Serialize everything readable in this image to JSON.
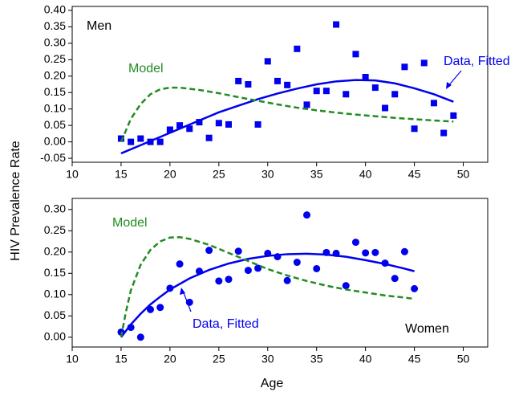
{
  "y_label": "HIV Prevalence Rate",
  "chart_data": [
    {
      "type": "scatter",
      "annotations": [
        "Men",
        "Model",
        "Data, Fitted"
      ],
      "xlim": [
        10,
        52.5
      ],
      "xticks": [
        10,
        15,
        20,
        25,
        30,
        35,
        40,
        45,
        50
      ],
      "ylim": [
        -0.062,
        0.412
      ],
      "yticks": [
        {
          "value": -0.05,
          "label": "-0.05"
        },
        {
          "value": 0,
          "label": "0.00"
        },
        {
          "value": 0.05,
          "label": "0.05"
        },
        {
          "value": 0.1,
          "label": "0.10"
        },
        {
          "value": 0.15,
          "label": "0.15"
        },
        {
          "value": 0.2,
          "label": "0.20"
        },
        {
          "value": 0.25,
          "label": "0.25"
        },
        {
          "value": 0.3,
          "label": "0.30"
        },
        {
          "value": 0.35,
          "label": "0.35"
        },
        {
          "value": 0.4,
          "label": "0.40"
        }
      ],
      "series": [
        {
          "style": "square",
          "color": "#0000ee",
          "x": [
            15,
            16,
            17,
            18,
            19,
            20,
            21,
            22,
            23,
            24,
            25,
            26,
            27,
            28,
            29,
            30,
            31,
            32,
            33,
            34,
            35,
            36,
            37,
            38,
            39,
            40,
            41,
            42,
            43,
            44,
            45,
            46,
            47,
            48,
            49
          ],
          "values": [
            0.01,
            0,
            0.01,
            0,
            0,
            0.037,
            0.05,
            0.04,
            0.06,
            0.012,
            0.057,
            0.053,
            0.185,
            0.175,
            0.053,
            0.245,
            0.185,
            0.173,
            0.283,
            0.113,
            0.155,
            0.155,
            0.357,
            0.145,
            0.267,
            0.197,
            0.165,
            0.103,
            0.145,
            0.228,
            0.04,
            0.24,
            0.118,
            0.027,
            0.08
          ]
        },
        {
          "style": "solid",
          "color": "#0000ee",
          "x": [
            15,
            17,
            19,
            21,
            23,
            25,
            27,
            29,
            31,
            33,
            35,
            37,
            39,
            41,
            43,
            45,
            47,
            49
          ],
          "values": [
            -0.035,
            -0.01,
            0.015,
            0.04,
            0.065,
            0.09,
            0.11,
            0.13,
            0.147,
            0.162,
            0.175,
            0.184,
            0.188,
            0.187,
            0.178,
            0.163,
            0.145,
            0.122
          ]
        },
        {
          "style": "dashed",
          "color": "#228b22",
          "x": [
            15,
            16,
            17,
            18,
            19,
            20,
            21,
            23,
            25,
            27,
            29,
            31,
            33,
            35,
            37,
            39,
            41,
            43,
            45,
            47,
            49
          ],
          "values": [
            0,
            0.07,
            0.115,
            0.145,
            0.16,
            0.165,
            0.165,
            0.158,
            0.148,
            0.136,
            0.125,
            0.114,
            0.104,
            0.096,
            0.089,
            0.083,
            0.078,
            0.073,
            0.069,
            0.065,
            0.062
          ]
        }
      ]
    },
    {
      "type": "scatter",
      "x_label": "Age",
      "annotations": [
        "Model",
        "Data, Fitted",
        "Women"
      ],
      "xlim": [
        10,
        52.5
      ],
      "xticks": [
        10,
        15,
        20,
        25,
        30,
        35,
        40,
        45,
        50
      ],
      "ylim": [
        -0.023,
        0.326
      ],
      "yticks": [
        {
          "value": 0,
          "label": "0.00"
        },
        {
          "value": 0.05,
          "label": "0.05"
        },
        {
          "value": 0.1,
          "label": "0.10"
        },
        {
          "value": 0.15,
          "label": "0.15"
        },
        {
          "value": 0.2,
          "label": "0.20"
        },
        {
          "value": 0.25,
          "label": "0.25"
        },
        {
          "value": 0.3,
          "label": "0.30"
        }
      ],
      "series": [
        {
          "style": "circle",
          "color": "#0000ee",
          "x": [
            15,
            16,
            17,
            18,
            19,
            20,
            21,
            22,
            23,
            24,
            25,
            26,
            27,
            28,
            29,
            30,
            31,
            32,
            33,
            34,
            35,
            36,
            37,
            38,
            39,
            40,
            41,
            42,
            43,
            44,
            45
          ],
          "values": [
            0.012,
            0.023,
            0,
            0.065,
            0.07,
            0.115,
            0.172,
            0.082,
            0.155,
            0.204,
            0.132,
            0.136,
            0.202,
            0.157,
            0.162,
            0.197,
            0.189,
            0.133,
            0.176,
            0.287,
            0.161,
            0.199,
            0.197,
            0.121,
            0.223,
            0.198,
            0.199,
            0.174,
            0.138,
            0.201,
            0.114
          ]
        },
        {
          "style": "solid",
          "color": "#0000ee",
          "x": [
            15,
            16,
            17,
            18,
            19,
            20,
            22,
            24,
            26,
            28,
            30,
            32,
            34,
            36,
            38,
            40,
            42,
            44,
            45
          ],
          "values": [
            0,
            0.03,
            0.055,
            0.077,
            0.095,
            0.112,
            0.138,
            0.158,
            0.173,
            0.184,
            0.191,
            0.195,
            0.196,
            0.194,
            0.189,
            0.181,
            0.172,
            0.161,
            0.155
          ]
        },
        {
          "style": "dashed",
          "color": "#228b22",
          "x": [
            15,
            15.5,
            16,
            17,
            18,
            19,
            20,
            21,
            22,
            24,
            26,
            28,
            30,
            32,
            34,
            36,
            38,
            40,
            42,
            44,
            45
          ],
          "values": [
            0,
            0.06,
            0.11,
            0.17,
            0.205,
            0.225,
            0.234,
            0.235,
            0.231,
            0.217,
            0.198,
            0.179,
            0.16,
            0.145,
            0.132,
            0.121,
            0.112,
            0.105,
            0.098,
            0.093,
            0.09
          ]
        }
      ]
    }
  ]
}
